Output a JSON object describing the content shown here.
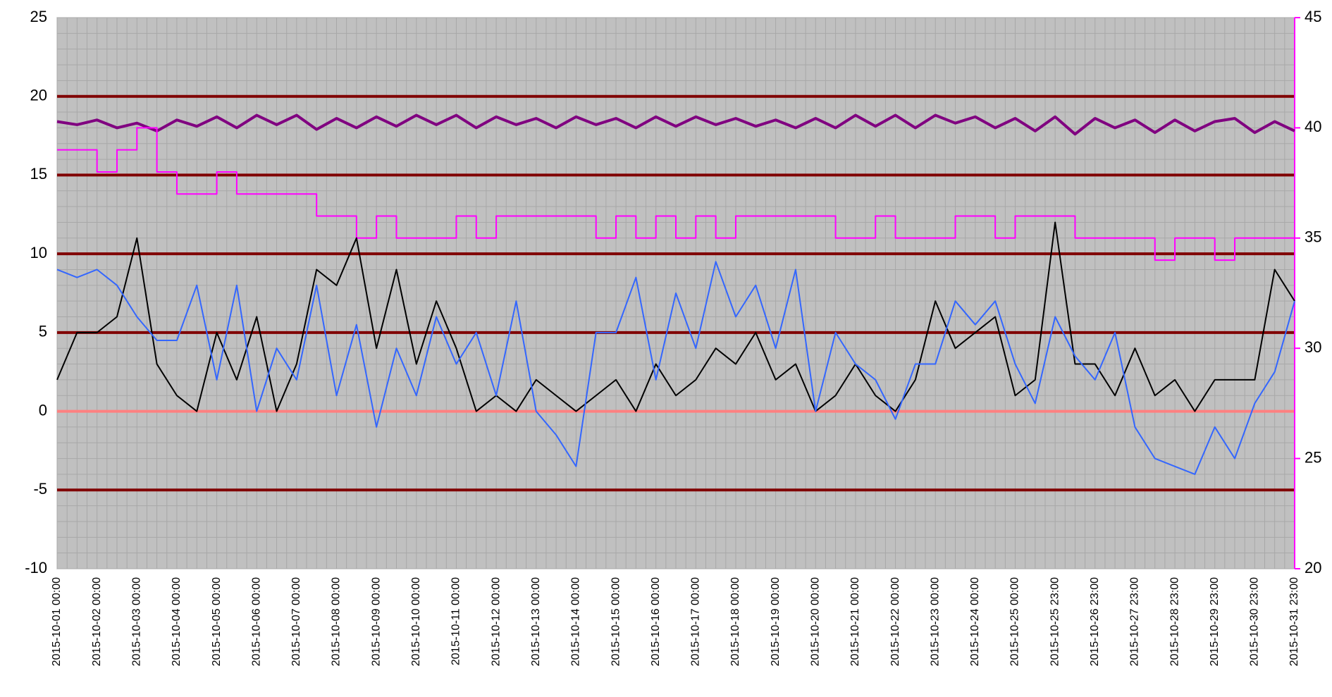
{
  "chart_data": {
    "type": "line",
    "categories": [
      "2015-10-01 00:00",
      null,
      "2015-10-02 00:00",
      null,
      "2015-10-03 00:00",
      null,
      "2015-10-04 00:00",
      null,
      "2015-10-05 00:00",
      null,
      "2015-10-06 00:00",
      null,
      "2015-10-07 00:00",
      null,
      "2015-10-08 00:00",
      null,
      "2015-10-09 00:00",
      null,
      "2015-10-10 00:00",
      null,
      "2015-10-11 00:00",
      null,
      "2015-10-12 00:00",
      null,
      "2015-10-13 00:00",
      null,
      "2015-10-14 00:00",
      null,
      "2015-10-15 00:00",
      null,
      "2015-10-16 00:00",
      null,
      "2015-10-17 00:00",
      null,
      "2015-10-18 00:00",
      null,
      "2015-10-19 00:00",
      null,
      "2015-10-20 00:00",
      null,
      "2015-10-21 00:00",
      null,
      "2015-10-22 00:00",
      null,
      "2015-10-23 00:00",
      null,
      "2015-10-24 00:00",
      null,
      "2015-10-25 00:00",
      null,
      "2015-10-25 23:00",
      null,
      "2015-10-26 23:00",
      null,
      "2015-10-27 23:00",
      null,
      "2015-10-28 23:00",
      null,
      "2015-10-29 23:00",
      null,
      "2015-10-30 23:00",
      null,
      "2015-10-31 23:00"
    ],
    "series": [
      {
        "color": "#800080",
        "width": 4,
        "values": [
          18.4,
          18.2,
          18.5,
          18.0,
          18.3,
          17.8,
          18.5,
          18.1,
          18.7,
          18.0,
          18.8,
          18.2,
          18.8,
          17.9,
          18.6,
          18.0,
          18.7,
          18.1,
          18.8,
          18.2,
          18.8,
          18.0,
          18.7,
          18.2,
          18.6,
          18.0,
          18.7,
          18.2,
          18.6,
          18.0,
          18.7,
          18.1,
          18.7,
          18.2,
          18.6,
          18.1,
          18.5,
          18.0,
          18.6,
          18.0,
          18.8,
          18.1,
          18.8,
          18.0,
          18.8,
          18.3,
          18.7,
          18.0,
          18.6,
          17.8,
          18.7,
          17.6,
          18.6,
          18.0,
          18.5,
          17.7,
          18.5,
          17.8,
          18.4,
          18.6,
          17.7,
          18.4,
          17.8
        ]
      },
      {
        "color": "#ff00ff",
        "width": 2,
        "axis": "y2",
        "step": true,
        "values": [
          39,
          39,
          38,
          39,
          40,
          38,
          37,
          37,
          38,
          37,
          37,
          37,
          37,
          36,
          36,
          35,
          36,
          35,
          35,
          35,
          36,
          35,
          36,
          36,
          36,
          36,
          36,
          35,
          36,
          35,
          36,
          35,
          36,
          35,
          36,
          36,
          36,
          36,
          36,
          35,
          35,
          36,
          35,
          35,
          35,
          36,
          36,
          35,
          36,
          36,
          36,
          35,
          35,
          35,
          35,
          34,
          35,
          35,
          34,
          35,
          35,
          35,
          35
        ]
      },
      {
        "color": "#000000",
        "width": 2,
        "values": [
          2,
          5,
          5,
          6,
          11,
          3,
          1,
          0,
          5,
          2,
          6,
          0,
          3,
          9,
          8,
          11,
          4,
          9,
          3,
          7,
          4,
          0,
          1,
          0,
          2,
          1,
          0,
          1,
          2,
          0,
          3,
          1,
          2,
          4,
          3,
          5,
          2,
          3,
          0,
          1,
          3,
          1,
          0,
          2,
          7,
          4,
          5,
          6,
          1,
          2,
          12,
          3,
          3,
          1,
          4,
          1,
          2,
          0,
          2,
          2,
          2,
          9,
          7
        ]
      },
      {
        "color": "#3366ff",
        "width": 2,
        "values": [
          9,
          8.5,
          9,
          8,
          6,
          4.5,
          4.5,
          8,
          2,
          8,
          0,
          4,
          2,
          8,
          1,
          5.5,
          -1,
          4,
          1,
          6,
          3,
          5,
          1,
          7,
          0,
          -1.5,
          -3.5,
          5,
          5,
          8.5,
          2,
          7.5,
          4,
          9.5,
          6,
          8,
          4,
          9,
          0,
          5,
          3,
          2,
          -0.5,
          3,
          3,
          7,
          5.5,
          7,
          3,
          0.5,
          6,
          3.5,
          2,
          5,
          -1,
          -3,
          -3.5,
          -4,
          -1,
          -3,
          0.5,
          2.5,
          7
        ]
      }
    ],
    "ylim": [
      -10,
      25
    ],
    "yticks": [
      -10,
      -5,
      0,
      5,
      10,
      15,
      20,
      25
    ],
    "y2lim": [
      20,
      45
    ],
    "y2ticks": [
      20,
      25,
      30,
      35,
      40,
      45
    ],
    "grid": true,
    "grid_color": "#800000",
    "zero_line_color": "#ff8080",
    "negative_tick_color": "#ff0000",
    "y2_color": "#ff00ff",
    "plot_background": "#c0c0c0"
  }
}
